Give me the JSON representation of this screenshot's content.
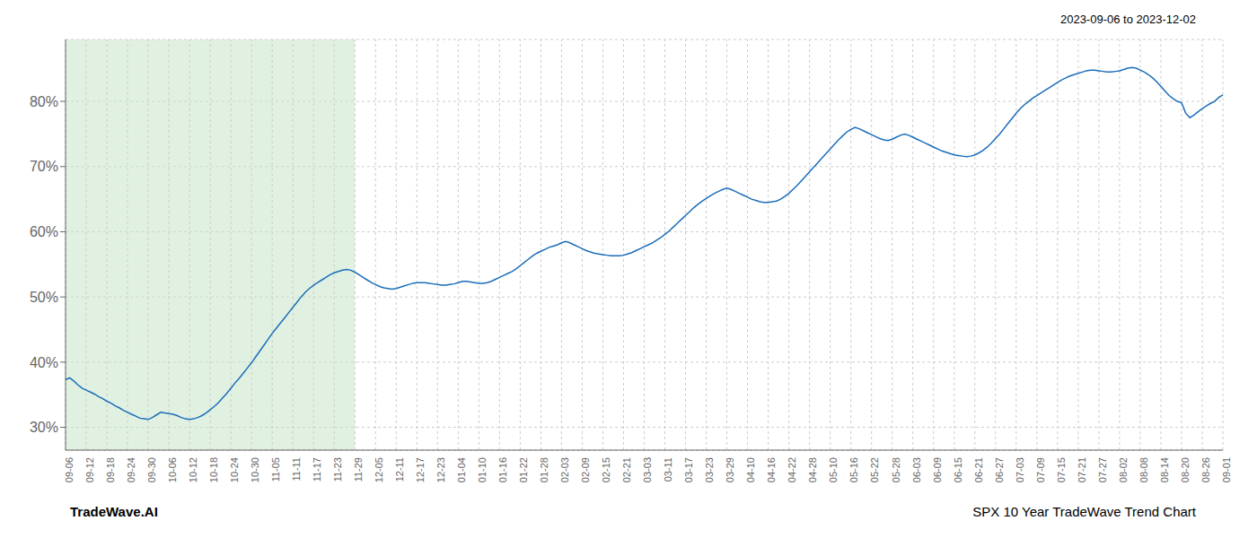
{
  "chart_data": {
    "type": "line",
    "title": "SPX 10 Year TradeWave Trend Chart",
    "subtitle": "2023-09-06 to 2023-12-02",
    "annotations": [
      "TradeWave.AI"
    ],
    "categories": [
      "09-06",
      null,
      null,
      null,
      null,
      "09-12",
      null,
      null,
      null,
      null,
      "09-18",
      null,
      null,
      null,
      null,
      "09-24",
      null,
      null,
      null,
      null,
      "09-30",
      null,
      null,
      null,
      null,
      "10-06",
      null,
      null,
      null,
      null,
      "10-12",
      null,
      null,
      null,
      null,
      "10-18",
      null,
      null,
      null,
      null,
      "10-24",
      null,
      null,
      null,
      null,
      "10-30",
      null,
      null,
      null,
      null,
      "11-05",
      null,
      null,
      null,
      null,
      "11-11",
      null,
      null,
      null,
      null,
      "11-17",
      null,
      null,
      null,
      null,
      "11-23",
      null,
      null,
      null,
      null,
      "11-29",
      null,
      null,
      null,
      null,
      "12-05",
      null,
      null,
      null,
      null,
      "12-11",
      null,
      null,
      null,
      null,
      "12-17",
      null,
      null,
      null,
      null,
      "12-23",
      null,
      null,
      null,
      null,
      "01-04",
      null,
      null,
      null,
      null,
      "01-10",
      null,
      null,
      null,
      null,
      "01-16",
      null,
      null,
      null,
      null,
      "01-22",
      null,
      null,
      null,
      null,
      "01-28",
      null,
      null,
      null,
      null,
      "02-03",
      null,
      null,
      null,
      null,
      "02-09",
      null,
      null,
      null,
      null,
      "02-15",
      null,
      null,
      null,
      null,
      "02-21",
      null,
      null,
      null,
      null,
      "03-03",
      null,
      null,
      null,
      null,
      "03-11",
      null,
      null,
      null,
      null,
      "03-17",
      null,
      null,
      null,
      null,
      "03-23",
      null,
      null,
      null,
      null,
      "03-29",
      null,
      null,
      null,
      null,
      "04-10",
      null,
      null,
      null,
      null,
      "04-16",
      null,
      null,
      null,
      null,
      "04-22",
      null,
      null,
      null,
      null,
      "04-28",
      null,
      null,
      null,
      null,
      "05-10",
      null,
      null,
      null,
      null,
      "05-16",
      null,
      null,
      null,
      null,
      "05-22",
      null,
      null,
      null,
      null,
      "05-28",
      null,
      null,
      null,
      null,
      "06-03",
      null,
      null,
      null,
      null,
      "06-09",
      null,
      null,
      null,
      null,
      "06-15",
      null,
      null,
      null,
      null,
      "06-21",
      null,
      null,
      null,
      null,
      "06-27",
      null,
      null,
      null,
      null,
      "07-03",
      null,
      null,
      null,
      null,
      "07-09",
      null,
      null,
      null,
      null,
      "07-15",
      null,
      null,
      null,
      null,
      "07-21",
      null,
      null,
      null,
      null,
      "07-27",
      null,
      null,
      null,
      null,
      "08-02",
      null,
      null,
      null,
      null,
      "08-08",
      null,
      null,
      null,
      null,
      "08-14",
      null,
      null,
      null,
      null,
      "08-20",
      null,
      null,
      null,
      null,
      "08-26",
      null,
      null,
      null,
      null,
      "09-01"
    ],
    "values": [
      0.373,
      0.376,
      0.371,
      0.365,
      0.36,
      0.357,
      0.354,
      0.351,
      0.347,
      0.344,
      0.34,
      0.337,
      0.333,
      0.33,
      0.326,
      0.323,
      0.32,
      0.317,
      0.314,
      0.313,
      0.312,
      0.315,
      0.319,
      0.323,
      0.322,
      0.321,
      0.32,
      0.318,
      0.315,
      0.313,
      0.312,
      0.313,
      0.315,
      0.318,
      0.322,
      0.327,
      0.332,
      0.338,
      0.345,
      0.352,
      0.36,
      0.368,
      0.375,
      0.383,
      0.391,
      0.399,
      0.408,
      0.417,
      0.426,
      0.435,
      0.444,
      0.452,
      0.46,
      0.468,
      0.476,
      0.484,
      0.492,
      0.5,
      0.507,
      0.513,
      0.518,
      0.522,
      0.526,
      0.53,
      0.534,
      0.537,
      0.539,
      0.541,
      0.542,
      0.541,
      0.538,
      0.534,
      0.53,
      0.526,
      0.522,
      0.519,
      0.516,
      0.514,
      0.513,
      0.512,
      0.513,
      0.515,
      0.517,
      0.519,
      0.521,
      0.522,
      0.522,
      0.522,
      0.521,
      0.52,
      0.519,
      0.518,
      0.518,
      0.519,
      0.52,
      0.522,
      0.524,
      0.524,
      0.523,
      0.522,
      0.521,
      0.521,
      0.522,
      0.524,
      0.527,
      0.53,
      0.533,
      0.536,
      0.539,
      0.543,
      0.548,
      0.553,
      0.558,
      0.563,
      0.567,
      0.57,
      0.573,
      0.576,
      0.578,
      0.58,
      0.583,
      0.585,
      0.583,
      0.58,
      0.577,
      0.574,
      0.571,
      0.569,
      0.567,
      0.566,
      0.565,
      0.564,
      0.563,
      0.563,
      0.563,
      0.564,
      0.566,
      0.568,
      0.571,
      0.574,
      0.577,
      0.58,
      0.583,
      0.587,
      0.591,
      0.596,
      0.601,
      0.607,
      0.613,
      0.619,
      0.625,
      0.631,
      0.637,
      0.642,
      0.647,
      0.651,
      0.655,
      0.659,
      0.662,
      0.665,
      0.667,
      0.665,
      0.662,
      0.659,
      0.656,
      0.653,
      0.65,
      0.648,
      0.646,
      0.645,
      0.645,
      0.646,
      0.647,
      0.65,
      0.654,
      0.659,
      0.665,
      0.671,
      0.678,
      0.685,
      0.692,
      0.699,
      0.706,
      0.713,
      0.72,
      0.727,
      0.734,
      0.741,
      0.747,
      0.753,
      0.757,
      0.76,
      0.758,
      0.755,
      0.752,
      0.749,
      0.746,
      0.743,
      0.741,
      0.74,
      0.742,
      0.745,
      0.748,
      0.75,
      0.748,
      0.745,
      0.742,
      0.739,
      0.736,
      0.733,
      0.73,
      0.727,
      0.724,
      0.722,
      0.72,
      0.718,
      0.717,
      0.716,
      0.715,
      0.716,
      0.718,
      0.721,
      0.725,
      0.73,
      0.736,
      0.743,
      0.75,
      0.758,
      0.766,
      0.774,
      0.782,
      0.789,
      0.795,
      0.8,
      0.805,
      0.809,
      0.813,
      0.817,
      0.821,
      0.825,
      0.829,
      0.833,
      0.836,
      0.839,
      0.841,
      0.843,
      0.845,
      0.847,
      0.848,
      0.848,
      0.847,
      0.846,
      0.845,
      0.845,
      0.846,
      0.847,
      0.849,
      0.851,
      0.852,
      0.851,
      0.848,
      0.845,
      0.841,
      0.836,
      0.83,
      0.823,
      0.816,
      0.809,
      0.804,
      0.8,
      0.798,
      0.782,
      0.775,
      0.779,
      0.784,
      0.789,
      0.793,
      0.797,
      0.8,
      0.806,
      0.81
    ],
    "color": "#1a6dba",
    "ylim": [
      0.265,
      0.895
    ],
    "yticks": [
      {
        "value": 0.3,
        "label": "30%"
      },
      {
        "value": 0.4,
        "label": "40%"
      },
      {
        "value": 0.5,
        "label": "50%"
      },
      {
        "value": 0.6,
        "label": "60%"
      },
      {
        "value": 0.7,
        "label": "70%"
      },
      {
        "value": 0.8,
        "label": "80%"
      }
    ],
    "grid": true,
    "shade": {
      "from": "09-06",
      "to": "11-29",
      "color": "#c8e6c9"
    }
  }
}
